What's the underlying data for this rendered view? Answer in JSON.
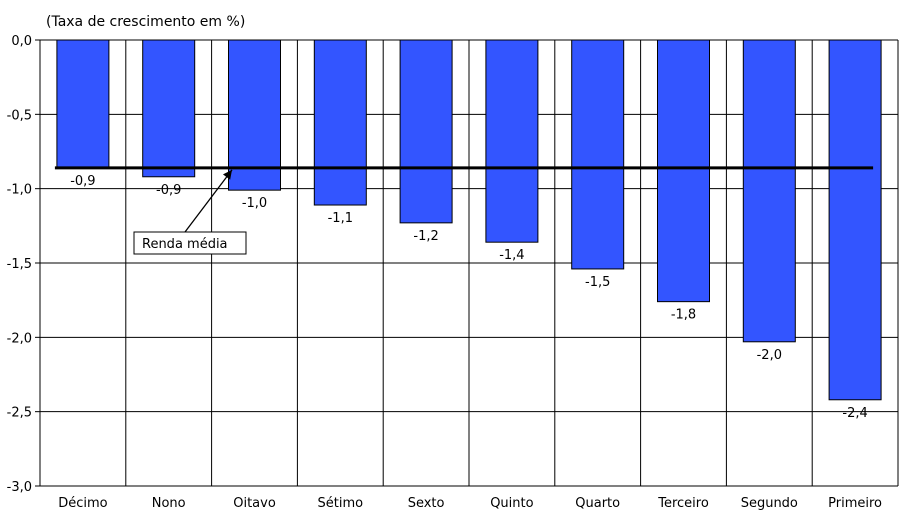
{
  "chart_data": {
    "type": "bar",
    "unit_label": "(Taxa de crescimento em %)",
    "categories": [
      "Décimo",
      "Nono",
      "Oitavo",
      "Sétimo",
      "Sexto",
      "Quinto",
      "Quarto",
      "Terceiro",
      "Segundo",
      "Primeiro"
    ],
    "values": [
      -0.86,
      -0.92,
      -1.01,
      -1.11,
      -1.23,
      -1.36,
      -1.54,
      -1.76,
      -2.03,
      -2.42
    ],
    "data_labels": [
      "-0,9",
      "-0,9",
      "-1,0",
      "-1,1",
      "-1,2",
      "-1,4",
      "-1,5",
      "-1,8",
      "-2,0",
      "-2,4"
    ],
    "ylim": [
      -3.0,
      0.0
    ],
    "yticks": [
      0.0,
      -0.5,
      -1.0,
      -1.5,
      -2.0,
      -2.5,
      -3.0
    ],
    "ytick_labels": [
      "0,0",
      "-0,5",
      "-1,0",
      "-1,5",
      "-2,0",
      "-2,5",
      "-3,0"
    ],
    "reference_line": {
      "value": -0.86,
      "label": "Renda média"
    },
    "grid": true,
    "colors": {
      "bar_fill": "#3355ff",
      "bar_stroke": "#000000",
      "grid": "#000000",
      "reference_line": "#000000"
    }
  }
}
